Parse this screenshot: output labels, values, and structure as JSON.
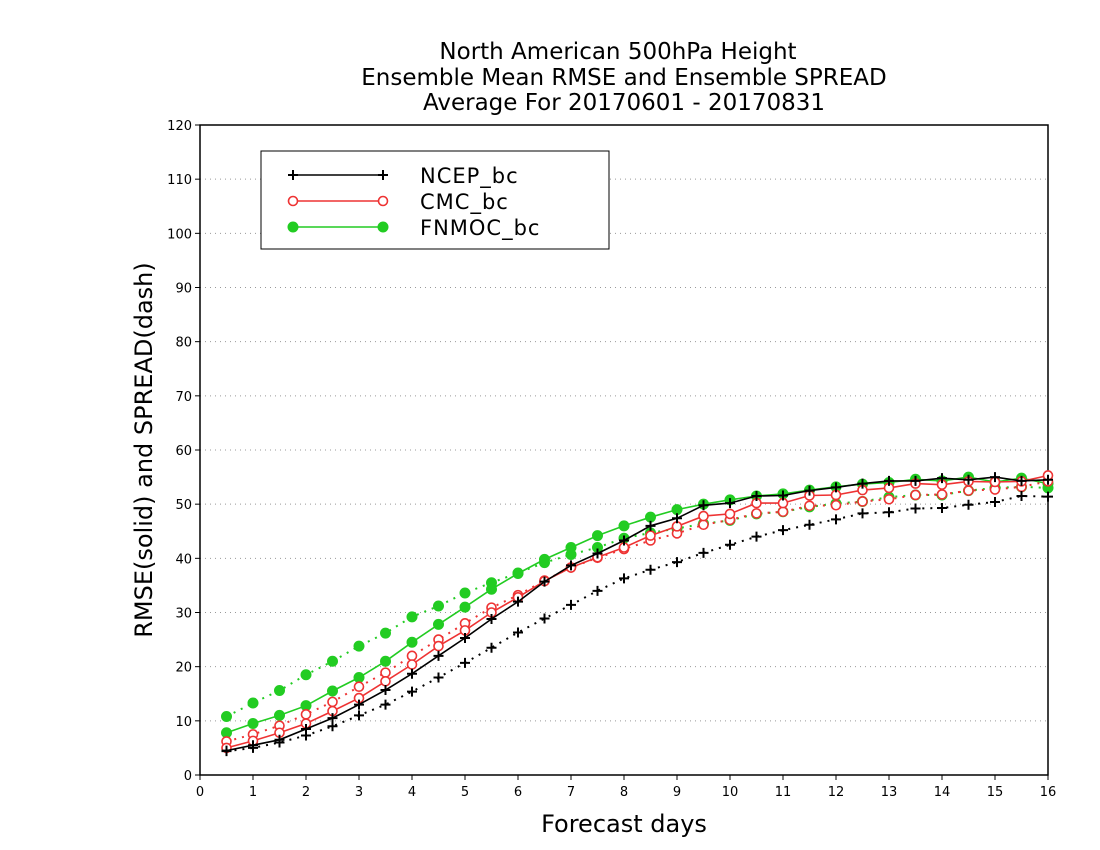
{
  "chart_data": {
    "type": "line",
    "title": [
      "North American 500hPa Height",
      "Ensemble Mean RMSE and Ensemble SPREAD",
      "Average For 20170601 - 20170831"
    ],
    "xlabel": "Forecast days",
    "ylabel": "RMSE(solid) and SPREAD(dash)",
    "xlim": [
      0,
      16
    ],
    "ylim": [
      0,
      120
    ],
    "xticks": [
      0,
      1,
      2,
      3,
      4,
      5,
      6,
      7,
      8,
      9,
      10,
      11,
      12,
      13,
      14,
      15,
      16
    ],
    "yticks": [
      0,
      10,
      20,
      30,
      40,
      50,
      60,
      70,
      80,
      90,
      100,
      110,
      120
    ],
    "grid": "horizontal dotted",
    "legend_position": "top-left",
    "x": [
      0.5,
      1,
      1.5,
      2,
      2.5,
      3,
      3.5,
      4,
      4.5,
      5,
      5.5,
      6,
      6.5,
      7,
      7.5,
      8,
      8.5,
      9,
      9.5,
      10,
      10.5,
      11,
      11.5,
      12,
      12.5,
      13,
      13.5,
      14,
      14.5,
      15,
      15.5,
      16
    ],
    "series": [
      {
        "name": "NCEP_bc",
        "color": "#000000",
        "marker": "plus",
        "rmse": [
          4.5,
          5.5,
          6.5,
          8.5,
          10.5,
          13,
          15.7,
          18.7,
          22,
          25.3,
          28.8,
          32,
          35.7,
          38.7,
          40.9,
          43.3,
          46,
          47.4,
          49.8,
          50.2,
          51.5,
          51.6,
          52.5,
          53.1,
          53.8,
          54.3,
          54.3,
          54.8,
          54.5,
          55.0,
          54.3,
          54.5
        ],
        "spread": [
          4.4,
          5.0,
          6.0,
          7.3,
          9.0,
          11.0,
          13.0,
          15.4,
          18.0,
          20.7,
          23.5,
          26.3,
          28.9,
          31.4,
          34.0,
          36.3,
          37.9,
          39.3,
          41.0,
          42.5,
          44.0,
          45.2,
          46.2,
          47.2,
          48.3,
          48.5,
          49.2,
          49.3,
          49.9,
          50.4,
          51.5,
          51.4
        ]
      },
      {
        "name": "CMC_bc",
        "color": "#ee3333",
        "marker": "open-circle",
        "rmse": [
          5.0,
          6.3,
          7.8,
          9.5,
          11.8,
          14.2,
          17.3,
          20.4,
          23.8,
          26.7,
          30.0,
          32.8,
          35.8,
          38.3,
          40.2,
          42.0,
          44.2,
          45.9,
          47.8,
          48.2,
          50.2,
          50.2,
          51.6,
          51.7,
          52.6,
          53.0,
          53.8,
          53.6,
          54.2,
          54.1,
          54.2,
          55.3
        ],
        "spread": [
          6.2,
          7.5,
          9.1,
          11.2,
          13.5,
          16.3,
          18.9,
          22.0,
          25.0,
          28.0,
          30.9,
          33.2,
          35.9,
          38.3,
          40.1,
          41.7,
          43.3,
          44.6,
          46.2,
          47.1,
          48.3,
          48.6,
          49.7,
          49.8,
          50.5,
          50.9,
          51.7,
          51.8,
          52.5,
          52.7,
          53.2,
          54.2
        ]
      },
      {
        "name": "FNMOC_bc",
        "color": "#22cc22",
        "marker": "filled-circle",
        "rmse": [
          7.8,
          9.5,
          11.0,
          12.8,
          15.5,
          18.0,
          21.0,
          24.5,
          27.8,
          31.0,
          34.3,
          37.2,
          39.8,
          42.0,
          44.2,
          46.0,
          47.6,
          49.0,
          50.0,
          50.8,
          51.5,
          51.9,
          52.6,
          53.2,
          53.7,
          54.0,
          54.6,
          54.3,
          55.0,
          54.1,
          54.8,
          53.8
        ],
        "spread": [
          10.8,
          13.3,
          15.6,
          18.5,
          21.0,
          23.8,
          26.2,
          29.2,
          31.2,
          33.6,
          35.5,
          37.3,
          39.2,
          40.7,
          42.0,
          43.7,
          44.7,
          45.5,
          46.4,
          47.0,
          48.2,
          48.6,
          49.5,
          50.1,
          50.5,
          51.3,
          51.7,
          51.7,
          52.5,
          53.0,
          53.2,
          53.0
        ]
      }
    ]
  }
}
